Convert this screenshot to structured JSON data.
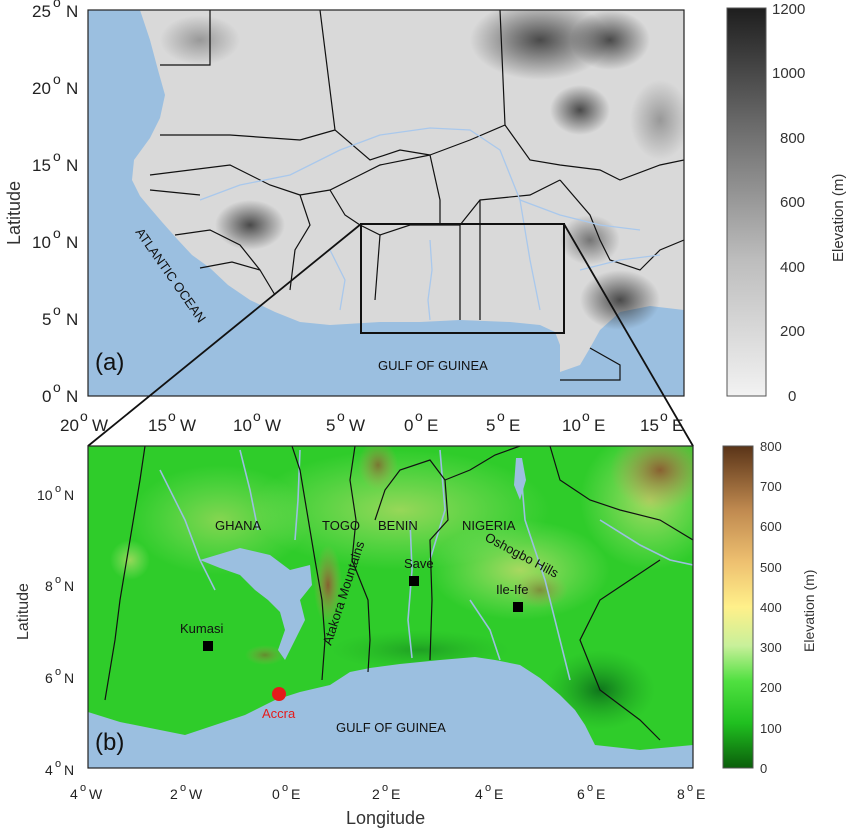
{
  "panel_a": {
    "label": "(a)",
    "y_axis_label": "Latitude",
    "y_ticks": [
      "25",
      "20",
      "15",
      "10",
      "5",
      "0"
    ],
    "y_tick_suffix": "N",
    "x_ticks": [
      {
        "num": "20",
        "dir": "W"
      },
      {
        "num": "15",
        "dir": "W"
      },
      {
        "num": "10",
        "dir": "W"
      },
      {
        "num": "5",
        "dir": "W"
      },
      {
        "num": "0",
        "dir": "E"
      },
      {
        "num": "5",
        "dir": "E"
      },
      {
        "num": "10",
        "dir": "E"
      },
      {
        "num": "15",
        "dir": "E"
      }
    ],
    "ocean_label": "ATLANTIC OCEAN",
    "gulf_label": "GULF OF GUINEA",
    "colorbar": {
      "label": "Elevation (m)",
      "ticks": [
        "1200",
        "1000",
        "800",
        "600",
        "400",
        "200",
        "0"
      ],
      "colors": [
        "#f2f2f2",
        "#1e1e1e"
      ]
    },
    "inset_box_lon": [
      -4,
      8
    ],
    "inset_box_lat": [
      4,
      11
    ]
  },
  "panel_b": {
    "label": "(b)",
    "x_axis_label": "Longitude",
    "y_axis_label": "Latitude",
    "y_ticks": [
      "10",
      "8",
      "6",
      "4"
    ],
    "y_tick_suffix": "N",
    "x_ticks": [
      {
        "num": "4",
        "dir": "W"
      },
      {
        "num": "2",
        "dir": "W"
      },
      {
        "num": "0",
        "dir": "E"
      },
      {
        "num": "2",
        "dir": "E"
      },
      {
        "num": "4",
        "dir": "E"
      },
      {
        "num": "6",
        "dir": "E"
      },
      {
        "num": "8",
        "dir": "E"
      }
    ],
    "countries": [
      "GHANA",
      "TOGO",
      "BENIN",
      "NIGERIA"
    ],
    "terrain_labels": {
      "atakora": "Atakora Mountains",
      "oshogbo": "Oshogbo Hills"
    },
    "stations": [
      "Kumasi",
      "Save",
      "Ile-Ife"
    ],
    "city": "Accra",
    "gulf_label": "GULF OF GUINEA",
    "colorbar": {
      "label": "Elevation (m)",
      "ticks": [
        "800",
        "700",
        "600",
        "500",
        "400",
        "300",
        "200",
        "100",
        "0"
      ],
      "colors": [
        "#0b5e0b",
        "#20c020",
        "#50e040",
        "#c8f09a",
        "#fff08a",
        "#eec070",
        "#c08a50",
        "#5a3418"
      ]
    },
    "accent_colors": {
      "ocean": "#9bbfe0",
      "city_marker": "#e51b1b",
      "station_marker": "#000000"
    }
  }
}
